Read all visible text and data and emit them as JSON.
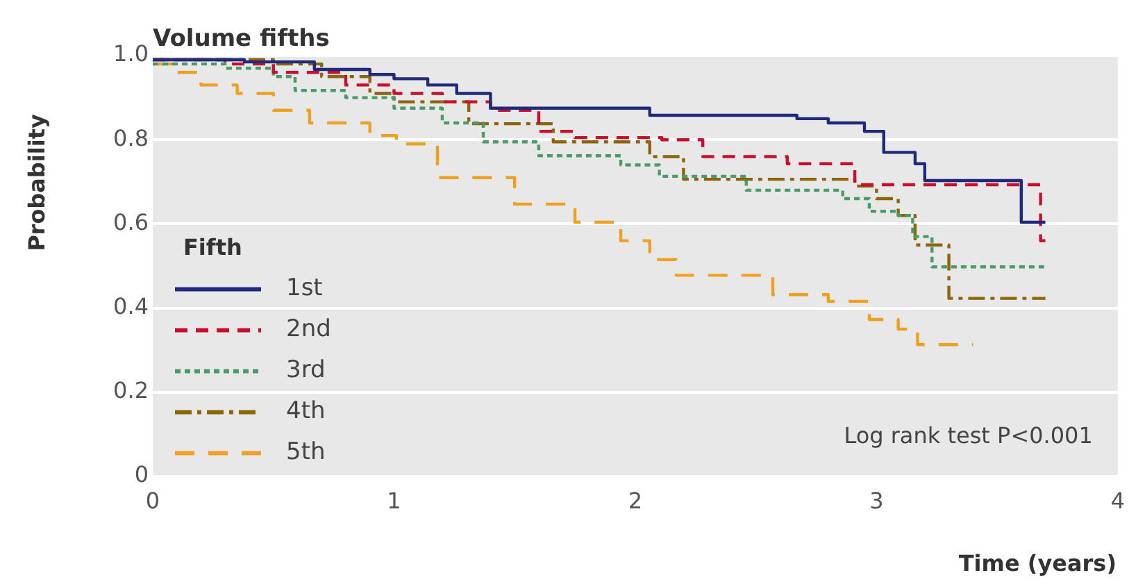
{
  "chart_data": {
    "type": "step",
    "title": "Volume fifths",
    "xlabel": "Time (years)",
    "ylabel": "Probability",
    "legend_title": "Fifth",
    "annotations": [
      "Log rank test P<0.001"
    ],
    "xlim": [
      0,
      4
    ],
    "xticks": [
      0,
      1,
      2,
      3,
      4
    ],
    "ylim": [
      0,
      1
    ],
    "yticks": [
      0,
      0.2,
      0.4,
      0.6,
      0.8,
      {
        "value": 1,
        "label": "1.0"
      }
    ],
    "grid": "y",
    "legend": "bottom left",
    "series": [
      {
        "name": "1st",
        "color": "#1f2a7c",
        "line_style": "solid",
        "x": [
          0,
          0.38,
          0.67,
          0.9,
          1.0,
          1.14,
          1.26,
          1.4,
          2.06,
          2.67,
          2.8,
          2.95,
          3.03,
          3.16,
          3.2,
          3.6,
          3.7
        ],
        "values": [
          0.99,
          0.985,
          0.967,
          0.955,
          0.945,
          0.93,
          0.91,
          0.875,
          0.858,
          0.85,
          0.84,
          0.82,
          0.77,
          0.743,
          0.703,
          0.604,
          0.604
        ]
      },
      {
        "name": "2nd",
        "color": "#c8102e",
        "line_style": "dashed",
        "x": [
          0,
          0.3,
          0.5,
          0.8,
          1.0,
          1.2,
          1.4,
          1.6,
          1.75,
          2.11,
          2.28,
          2.63,
          2.91,
          3.68,
          3.7
        ],
        "values": [
          0.99,
          0.98,
          0.96,
          0.93,
          0.91,
          0.89,
          0.87,
          0.82,
          0.805,
          0.8,
          0.76,
          0.743,
          0.693,
          0.56,
          0.56
        ]
      },
      {
        "name": "3rd",
        "color": "#4a9a6a",
        "line_style": "dotted",
        "x": [
          0,
          0.3,
          0.5,
          0.59,
          0.8,
          1.0,
          1.2,
          1.37,
          1.6,
          1.94,
          2.1,
          2.46,
          2.86,
          2.97,
          3.09,
          3.15,
          3.23,
          3.7
        ],
        "values": [
          0.98,
          0.97,
          0.95,
          0.917,
          0.9,
          0.875,
          0.84,
          0.795,
          0.762,
          0.74,
          0.713,
          0.68,
          0.66,
          0.63,
          0.62,
          0.57,
          0.498,
          0.498
        ]
      },
      {
        "name": "4th",
        "color": "#8b6508",
        "line_style": "dashdot",
        "x": [
          0,
          0.5,
          0.7,
          0.9,
          1.0,
          1.31,
          1.66,
          2.06,
          2.2,
          2.91,
          3.0,
          3.09,
          3.16,
          3.3,
          3.7
        ],
        "values": [
          0.99,
          0.98,
          0.95,
          0.91,
          0.89,
          0.838,
          0.795,
          0.76,
          0.706,
          0.69,
          0.66,
          0.62,
          0.55,
          0.423,
          0.423
        ]
      },
      {
        "name": "5th",
        "color": "#f0a020",
        "line_style": "longdash",
        "x": [
          0,
          0.1,
          0.2,
          0.35,
          0.5,
          0.65,
          0.9,
          1.01,
          1.18,
          1.5,
          1.75,
          1.94,
          2.06,
          2.17,
          2.57,
          2.8,
          2.97,
          3.09,
          3.17,
          3.4
        ],
        "values": [
          0.98,
          0.96,
          0.93,
          0.91,
          0.87,
          0.84,
          0.81,
          0.79,
          0.71,
          0.647,
          0.604,
          0.56,
          0.515,
          0.478,
          0.432,
          0.416,
          0.373,
          0.35,
          0.313,
          0.313
        ]
      }
    ]
  }
}
